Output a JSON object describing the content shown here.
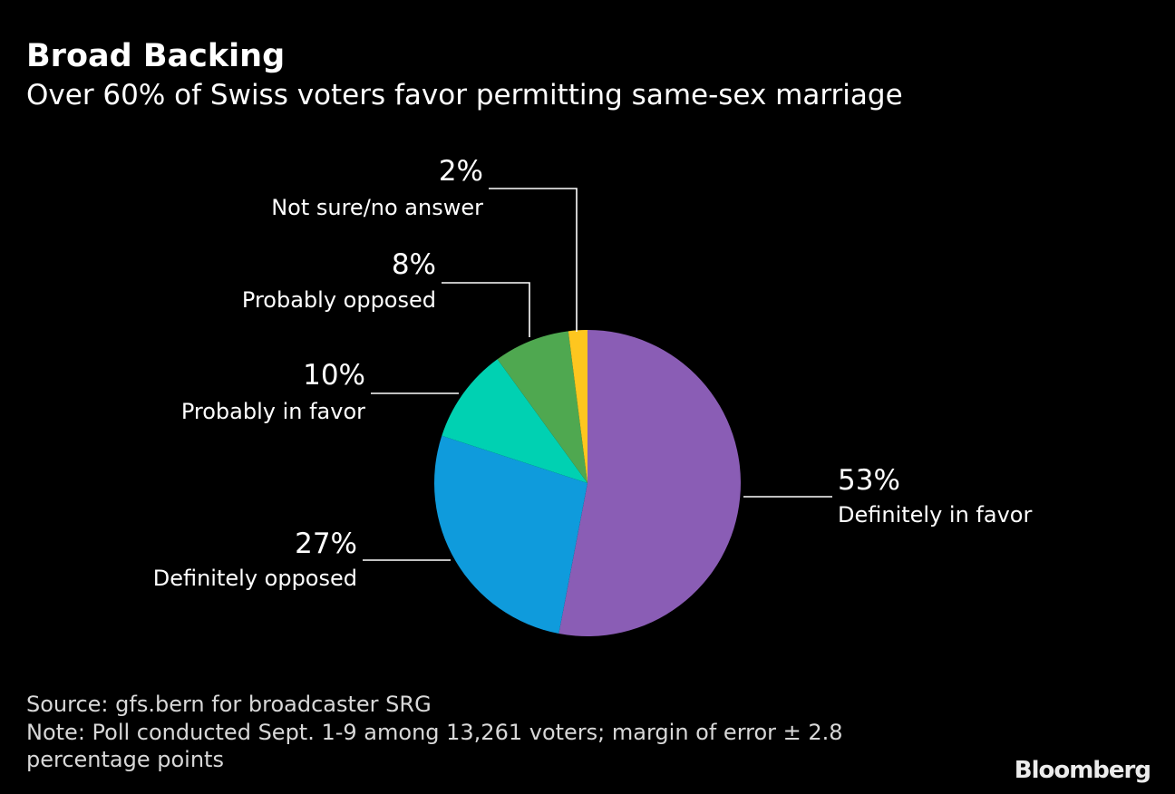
{
  "header": {
    "title": "Broad Backing",
    "subtitle": "Over 60% of Swiss voters favor permitting same-sex marriage"
  },
  "chart_data": {
    "type": "pie",
    "title": "Broad Backing",
    "subtitle": "Over 60% of Swiss voters favor permitting same-sex marriage",
    "slices": [
      {
        "label": "Definitely in favor",
        "value": 53,
        "value_label": "53%",
        "color": "#8a5db5"
      },
      {
        "label": "Definitely opposed",
        "value": 27,
        "value_label": "27%",
        "color": "#0f9bdc"
      },
      {
        "label": "Probably in favor",
        "value": 10,
        "value_label": "10%",
        "color": "#00d1b2"
      },
      {
        "label": "Probably opposed",
        "value": 8,
        "value_label": "8%",
        "color": "#4fa850"
      },
      {
        "label": "Not sure/no answer",
        "value": 2,
        "value_label": "2%",
        "color": "#fec61f"
      }
    ]
  },
  "footer": {
    "source": "Source: gfs.bern for broadcaster SRG",
    "note_line1": "Note: Poll conducted Sept. 1-9 among 13,261 voters; margin of error ± 2.8",
    "note_line2": "percentage points"
  },
  "brand": "Bloomberg"
}
